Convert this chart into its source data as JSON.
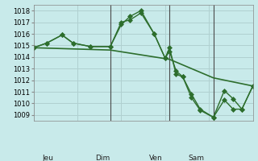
{
  "bg_color": "#c8eaea",
  "grid_color": "#b0d0d0",
  "line_color": "#2d6e2d",
  "marker_color": "#2d6e2d",
  "ylim": [
    1008.5,
    1018.5
  ],
  "yticks": [
    1009,
    1010,
    1011,
    1012,
    1013,
    1014,
    1015,
    1016,
    1017,
    1018
  ],
  "day_positions": [
    0.08,
    0.35,
    0.62,
    0.82
  ],
  "day_labels": [
    "Jeu",
    "Dim",
    "Ven",
    "Sam"
  ],
  "series1_x": [
    0.0,
    0.06,
    0.13,
    0.18,
    0.26,
    0.35,
    0.4,
    0.44,
    0.49,
    0.55,
    0.6,
    0.62,
    0.65,
    0.68,
    0.72,
    0.76,
    0.82,
    0.87,
    0.91,
    0.95,
    1.0
  ],
  "series1_y": [
    1014.8,
    1015.2,
    1015.9,
    1015.2,
    1014.9,
    1014.9,
    1017.0,
    1017.2,
    1017.8,
    1016.0,
    1013.9,
    1014.8,
    1012.5,
    1012.3,
    1010.5,
    1009.4,
    1008.8,
    1011.1,
    1010.4,
    1009.5,
    1011.5
  ],
  "series2_x": [
    0.0,
    0.06,
    0.13,
    0.18,
    0.26,
    0.35,
    0.4,
    0.44,
    0.49,
    0.55,
    0.6,
    0.62,
    0.65,
    0.68,
    0.72,
    0.76,
    0.82,
    0.87,
    0.91,
    0.95,
    1.0
  ],
  "series2_y": [
    1014.8,
    1015.2,
    1015.9,
    1015.2,
    1014.9,
    1014.9,
    1016.8,
    1017.5,
    1018.0,
    1016.0,
    1013.9,
    1014.5,
    1012.8,
    1012.3,
    1010.8,
    1009.5,
    1008.8,
    1010.3,
    1009.5,
    1009.5,
    1011.5
  ],
  "series3_x": [
    0.0,
    0.35,
    0.62,
    0.82,
    1.0
  ],
  "series3_y": [
    1014.8,
    1014.6,
    1013.8,
    1012.2,
    1011.5
  ],
  "vline_positions": [
    0.35,
    0.62,
    0.82
  ]
}
